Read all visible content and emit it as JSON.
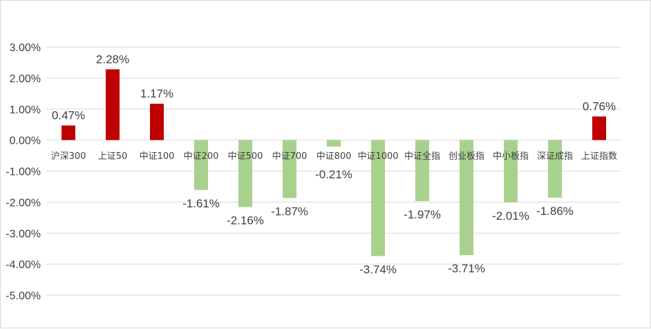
{
  "chart_data": {
    "type": "bar",
    "categories": [
      "沪深300",
      "上证50",
      "中证100",
      "中证200",
      "中证500",
      "中证700",
      "中证800",
      "中证1000",
      "中证全指",
      "创业板指",
      "中小板指",
      "深证成指",
      "上证指数"
    ],
    "values": [
      0.47,
      2.28,
      1.17,
      -1.61,
      -2.16,
      -1.87,
      -0.21,
      -3.74,
      -1.97,
      -3.71,
      -2.01,
      -1.86,
      0.76
    ],
    "data_labels": [
      "0.47%",
      "2.28%",
      "1.17%",
      "-1.61%",
      "-2.16%",
      "-1.87%",
      "-0.21%",
      "-3.74%",
      "-1.97%",
      "-3.71%",
      "-2.01%",
      "-1.86%",
      "0.76%"
    ],
    "ylim": [
      -5,
      3
    ],
    "yticks": [
      3,
      2,
      1,
      0,
      -1,
      -2,
      -3,
      -4,
      -5
    ],
    "ytick_labels": [
      "3.00%",
      "2.00%",
      "1.00%",
      "0.00%",
      "-1.00%",
      "-2.00%",
      "-3.00%",
      "-4.00%",
      "-5.00%"
    ],
    "title": "",
    "xlabel": "",
    "ylabel": "",
    "grid": true,
    "legend": false
  },
  "colors": {
    "positive": "#c00000",
    "negative": "#a9d18e",
    "grid": "#d9d9d9",
    "text": "#404040"
  }
}
